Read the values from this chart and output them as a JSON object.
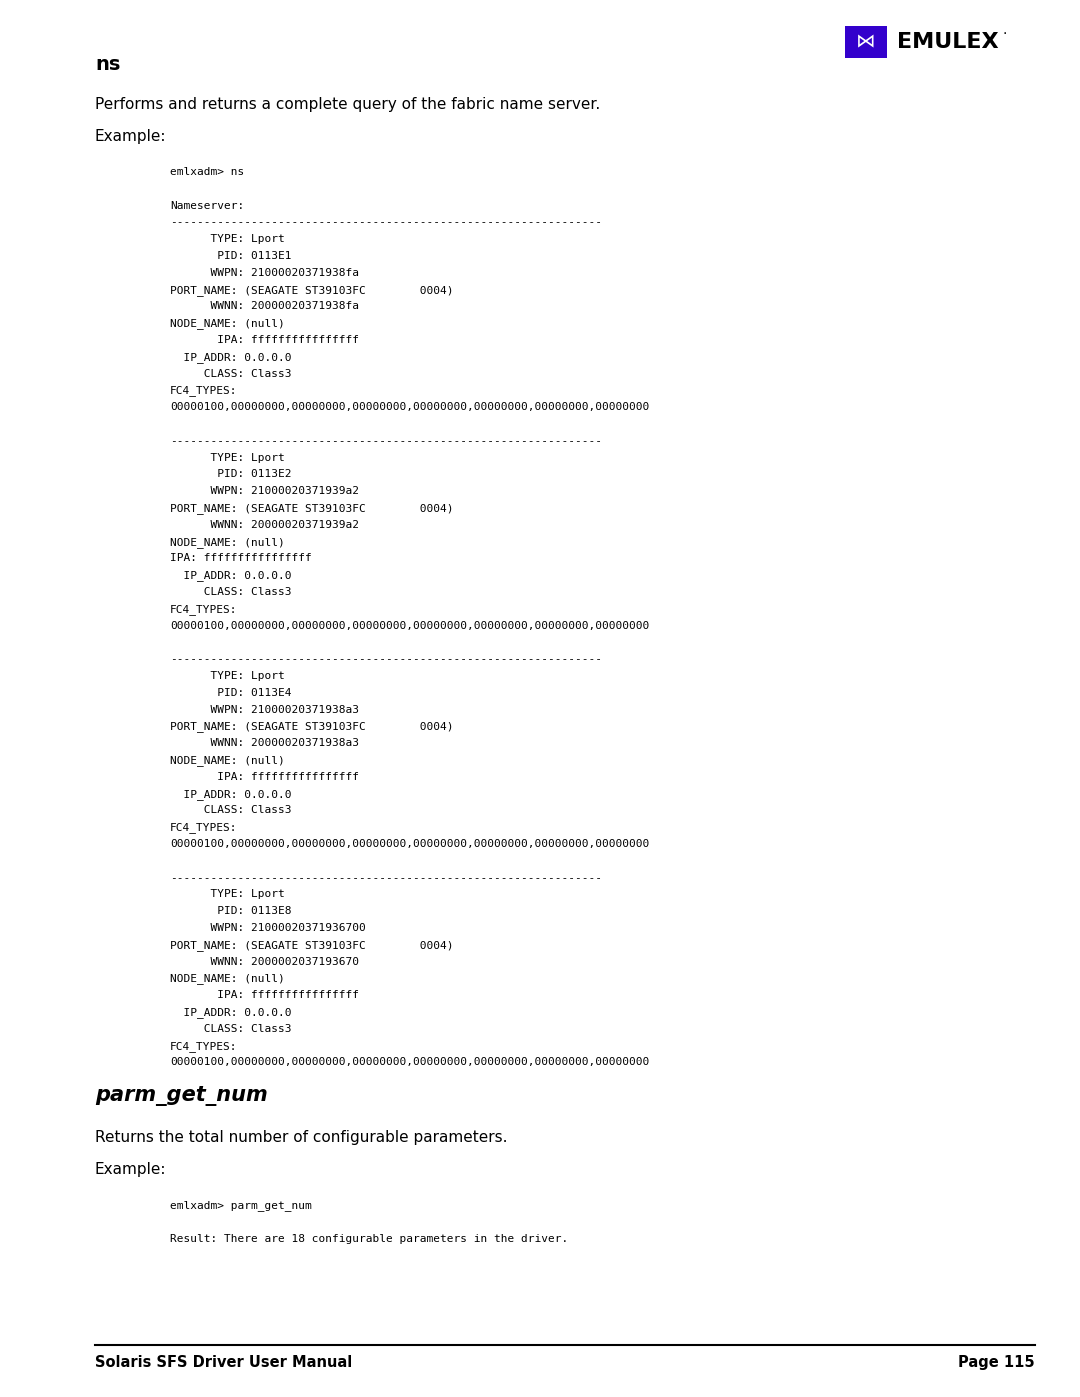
{
  "bg_color": "#ffffff",
  "section_heading": "ns",
  "description": "Performs and returns a complete query of the fabric name server.",
  "example_label": "Example:",
  "code_block1": [
    "emlxadm> ns",
    "",
    "Nameserver:",
    "----------------------------------------------------------------",
    "      TYPE: Lport",
    "       PID: 0113E1",
    "      WWPN: 21000020371938fa",
    "PORT_NAME: (SEAGATE ST39103FC        0004)",
    "      WWNN: 20000020371938fa",
    "NODE_NAME: (null)",
    "       IPA: ffffffffffffffff",
    "  IP_ADDR: 0.0.0.0",
    "     CLASS: Class3",
    "FC4_TYPES:",
    "00000100,00000000,00000000,00000000,00000000,00000000,00000000,00000000",
    "",
    "----------------------------------------------------------------",
    "      TYPE: Lport",
    "       PID: 0113E2",
    "      WWPN: 21000020371939a2",
    "PORT_NAME: (SEAGATE ST39103FC        0004)",
    "      WWNN: 20000020371939a2",
    "NODE_NAME: (null)",
    "IPA: ffffffffffffffff",
    "  IP_ADDR: 0.0.0.0",
    "     CLASS: Class3",
    "FC4_TYPES:",
    "00000100,00000000,00000000,00000000,00000000,00000000,00000000,00000000",
    "",
    "----------------------------------------------------------------",
    "      TYPE: Lport",
    "       PID: 0113E4",
    "      WWPN: 21000020371938a3",
    "PORT_NAME: (SEAGATE ST39103FC        0004)",
    "      WWNN: 20000020371938a3",
    "NODE_NAME: (null)",
    "       IPA: ffffffffffffffff",
    "  IP_ADDR: 0.0.0.0",
    "     CLASS: Class3",
    "FC4_TYPES:",
    "00000100,00000000,00000000,00000000,00000000,00000000,00000000,00000000",
    "",
    "----------------------------------------------------------------",
    "      TYPE: Lport",
    "       PID: 0113E8",
    "      WWPN: 21000020371936700",
    "PORT_NAME: (SEAGATE ST39103FC        0004)",
    "      WWNN: 2000002037193670",
    "NODE_NAME: (null)",
    "       IPA: ffffffffffffffff",
    "  IP_ADDR: 0.0.0.0",
    "     CLASS: Class3",
    "FC4_TYPES:",
    "00000100,00000000,00000000,00000000,00000000,00000000,00000000,00000000"
  ],
  "section2_heading": "parm_get_num",
  "description2": "Returns the total number of configurable parameters.",
  "example_label2": "Example:",
  "code_block2": [
    "emlxadm> parm_get_num",
    "",
    "Result: There are 18 configurable parameters in the driver."
  ],
  "footer_left": "Solaris SFS Driver User Manual",
  "footer_right": "Page 115",
  "page_width": 10.8,
  "page_height": 13.97
}
